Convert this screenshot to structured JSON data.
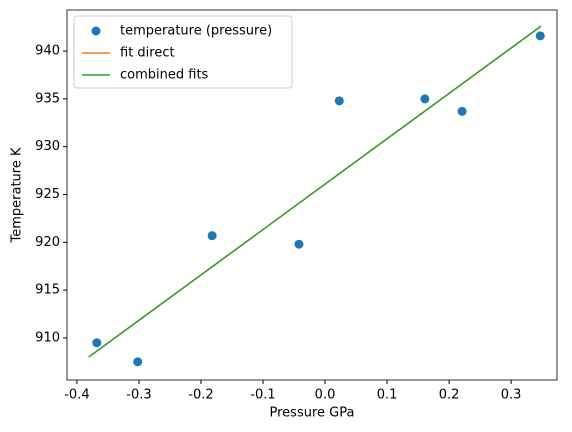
{
  "chart_data": {
    "type": "line",
    "xlabel": "Pressure GPa",
    "ylabel": "Temperature K",
    "xlim": [
      -0.416,
      0.374
    ],
    "ylim": [
      905.6,
      944.3
    ],
    "xticks": [
      -0.4,
      -0.3,
      -0.2,
      -0.1,
      {
        "value": 0,
        "label": "0.0"
      },
      0.1,
      0.2,
      0.3
    ],
    "yticks": [
      910,
      915,
      920,
      925,
      930,
      935,
      940
    ],
    "legend": "upper left",
    "series": [
      {
        "name": "temperature (pressure)",
        "kind": "scatter",
        "color": "#1f77b4",
        "x": [
          -0.368,
          -0.302,
          -0.182,
          -0.042,
          0.023,
          0.161,
          0.221,
          0.347
        ],
        "values": [
          909.5,
          907.5,
          920.7,
          919.8,
          934.8,
          935.0,
          933.7,
          941.6
        ]
      },
      {
        "name": "fit direct",
        "kind": "line",
        "color": "#ff7f0e",
        "x": [
          -0.381,
          0.348
        ],
        "values": [
          908.0,
          942.6
        ]
      },
      {
        "name": "combined fits",
        "kind": "line",
        "color": "#2ca02c",
        "x": [
          -0.381,
          0.348
        ],
        "values": [
          908.0,
          942.6
        ]
      }
    ]
  }
}
